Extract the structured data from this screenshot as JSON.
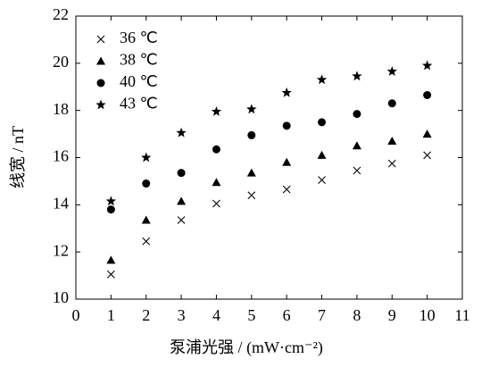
{
  "chart_data": {
    "type": "scatter",
    "xlabel": "泵浦光强 / (mW·cm⁻²)",
    "ylabel": "线宽 / nT",
    "x": [
      1,
      2,
      3,
      4,
      5,
      6,
      7,
      8,
      9,
      10
    ],
    "series": [
      {
        "name": "36 ℃",
        "color": "#000000",
        "marker": "x",
        "values": [
          11.05,
          12.45,
          13.35,
          14.05,
          14.4,
          14.65,
          15.05,
          15.45,
          15.75,
          16.1
        ]
      },
      {
        "name": "38 ℃",
        "color": "#000000",
        "marker": "triangle",
        "values": [
          11.65,
          13.35,
          14.15,
          14.95,
          15.35,
          15.8,
          16.1,
          16.5,
          16.7,
          17.0
        ]
      },
      {
        "name": "40 ℃",
        "color": "#000000",
        "marker": "circle",
        "values": [
          13.8,
          14.9,
          15.35,
          16.35,
          16.95,
          17.35,
          17.5,
          17.85,
          18.3,
          18.65
        ]
      },
      {
        "name": "43 ℃",
        "color": "#000000",
        "marker": "star",
        "values": [
          14.15,
          16.0,
          17.05,
          17.95,
          18.05,
          18.75,
          19.3,
          19.45,
          19.65,
          19.9
        ]
      }
    ],
    "xlim": [
      0,
      11
    ],
    "xticks": [
      0,
      1,
      2,
      3,
      4,
      5,
      6,
      7,
      8,
      9,
      10,
      11
    ],
    "ylim": [
      10,
      22
    ],
    "yticks": [
      10,
      12,
      14,
      16,
      18,
      20,
      22
    ],
    "legend": "upper-left"
  }
}
